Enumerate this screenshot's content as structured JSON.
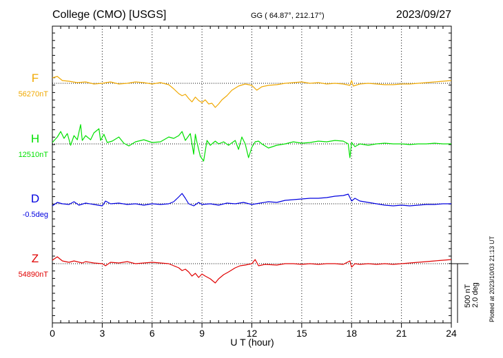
{
  "header": {
    "station": "College (CMO)  [USGS]",
    "coords": "GG ( 64.87°, 212.17°)",
    "date": "2023/09/27"
  },
  "side_note": "Plotted at 2023/10/03 21:13 UT",
  "scale_bar": {
    "line1": "500 nT",
    "line2": "2.0 deg"
  },
  "chart_data": {
    "type": "line",
    "xlabel": "U T (hour)",
    "xlim": [
      0,
      24
    ],
    "xticks": [
      0,
      3,
      6,
      9,
      12,
      15,
      18,
      21,
      24
    ],
    "grid": "vertical dotted every 3 h",
    "series": [
      {
        "name": "F",
        "baseline_label": "56270nT",
        "color": "#f0a800",
        "scale": "500 nT per bar",
        "points": [
          [
            0,
            -8
          ],
          [
            0.3,
            -10
          ],
          [
            0.6,
            -4
          ],
          [
            1,
            -3
          ],
          [
            1.5,
            -1
          ],
          [
            2,
            -2
          ],
          [
            2.5,
            1
          ],
          [
            3,
            0
          ],
          [
            3.5,
            -2
          ],
          [
            4,
            1
          ],
          [
            4.5,
            0
          ],
          [
            5,
            -2
          ],
          [
            5.5,
            -1
          ],
          [
            6,
            1
          ],
          [
            6.5,
            -1
          ],
          [
            7,
            2
          ],
          [
            7.3,
            8
          ],
          [
            7.6,
            15
          ],
          [
            7.8,
            18
          ],
          [
            8,
            16
          ],
          [
            8.2,
            22
          ],
          [
            8.4,
            27
          ],
          [
            8.6,
            20
          ],
          [
            8.8,
            25
          ],
          [
            9,
            28
          ],
          [
            9.2,
            24
          ],
          [
            9.4,
            30
          ],
          [
            9.6,
            29
          ],
          [
            9.8,
            35
          ],
          [
            10,
            30
          ],
          [
            10.2,
            24
          ],
          [
            10.5,
            18
          ],
          [
            10.8,
            10
          ],
          [
            11.2,
            4
          ],
          [
            11.6,
            1
          ],
          [
            12,
            3
          ],
          [
            12.3,
            10
          ],
          [
            12.6,
            5
          ],
          [
            13,
            3
          ],
          [
            13.5,
            2
          ],
          [
            14,
            0
          ],
          [
            14.5,
            -1
          ],
          [
            15,
            -2
          ],
          [
            15.5,
            0
          ],
          [
            16,
            -1
          ],
          [
            16.5,
            1
          ],
          [
            17,
            0
          ],
          [
            17.5,
            1
          ],
          [
            17.9,
            3
          ],
          [
            18,
            -4
          ],
          [
            18.1,
            4
          ],
          [
            18.5,
            1
          ],
          [
            19,
            0
          ],
          [
            19.5,
            1
          ],
          [
            20,
            2
          ],
          [
            20.5,
            2
          ],
          [
            21,
            1
          ],
          [
            21.5,
            1
          ],
          [
            22,
            0
          ],
          [
            22.5,
            -1
          ],
          [
            23,
            -2
          ],
          [
            23.5,
            -3
          ],
          [
            24,
            -4
          ]
        ]
      },
      {
        "name": "H",
        "baseline_label": "12510nT",
        "color": "#00e000",
        "scale": "500 nT per bar",
        "points": [
          [
            0,
            -2
          ],
          [
            0.3,
            -10
          ],
          [
            0.5,
            -18
          ],
          [
            0.7,
            -8
          ],
          [
            0.9,
            -15
          ],
          [
            1.1,
            2
          ],
          [
            1.3,
            -12
          ],
          [
            1.5,
            -6
          ],
          [
            1.7,
            -28
          ],
          [
            1.8,
            -5
          ],
          [
            2,
            -12
          ],
          [
            2.3,
            -6
          ],
          [
            2.5,
            -16
          ],
          [
            2.8,
            -22
          ],
          [
            2.9,
            -5
          ],
          [
            3.1,
            -14
          ],
          [
            3.3,
            -2
          ],
          [
            3.6,
            -4
          ],
          [
            4,
            -10
          ],
          [
            4.3,
            -1
          ],
          [
            4.6,
            3
          ],
          [
            5,
            -3
          ],
          [
            5.5,
            -6
          ],
          [
            6,
            -2
          ],
          [
            6.5,
            -3
          ],
          [
            7,
            -10
          ],
          [
            7.3,
            -8
          ],
          [
            7.6,
            -12
          ],
          [
            7.8,
            -18
          ],
          [
            8,
            -5
          ],
          [
            8.3,
            -15
          ],
          [
            8.5,
            15
          ],
          [
            8.6,
            -14
          ],
          [
            8.7,
            -2
          ],
          [
            8.9,
            18
          ],
          [
            9.1,
            25
          ],
          [
            9.3,
            -5
          ],
          [
            9.5,
            2
          ],
          [
            9.8,
            -4
          ],
          [
            10,
            0
          ],
          [
            10.3,
            -3
          ],
          [
            10.6,
            2
          ],
          [
            11,
            -5
          ],
          [
            11.2,
            8
          ],
          [
            11.4,
            -10
          ],
          [
            11.6,
            0
          ],
          [
            11.8,
            20
          ],
          [
            12,
            5
          ],
          [
            12.2,
            -3
          ],
          [
            12.4,
            -4
          ],
          [
            12.6,
            0
          ],
          [
            13,
            6
          ],
          [
            13.5,
            2
          ],
          [
            14,
            0
          ],
          [
            14.5,
            -3
          ],
          [
            15,
            -1
          ],
          [
            15.5,
            -2
          ],
          [
            16,
            -4
          ],
          [
            16.5,
            -3
          ],
          [
            17,
            -5
          ],
          [
            17.5,
            -4
          ],
          [
            17.8,
            0
          ],
          [
            17.9,
            20
          ],
          [
            18,
            -2
          ],
          [
            18.2,
            4
          ],
          [
            18.5,
            0
          ],
          [
            19,
            2
          ],
          [
            19.5,
            0
          ],
          [
            20,
            -1
          ],
          [
            20.5,
            0
          ],
          [
            21,
            0
          ],
          [
            21.5,
            1
          ],
          [
            22,
            0
          ],
          [
            22.5,
            0
          ],
          [
            23,
            -1
          ],
          [
            23.5,
            0
          ],
          [
            24,
            0
          ]
        ]
      },
      {
        "name": "D",
        "baseline_label": "-0.5deg",
        "color": "#0000e0",
        "scale": "2.0 deg per bar",
        "points": [
          [
            0,
            3
          ],
          [
            0.3,
            -2
          ],
          [
            0.6,
            0
          ],
          [
            1,
            1
          ],
          [
            1.3,
            -3
          ],
          [
            1.6,
            2
          ],
          [
            2,
            -1
          ],
          [
            2.5,
            1
          ],
          [
            3,
            3
          ],
          [
            3.2,
            -4
          ],
          [
            3.5,
            0
          ],
          [
            4,
            -1
          ],
          [
            4.5,
            1
          ],
          [
            5,
            0
          ],
          [
            5.5,
            2
          ],
          [
            6,
            0
          ],
          [
            6.5,
            1
          ],
          [
            7,
            0
          ],
          [
            7.3,
            -3
          ],
          [
            7.6,
            -10
          ],
          [
            7.8,
            -15
          ],
          [
            8,
            -8
          ],
          [
            8.2,
            0
          ],
          [
            8.5,
            3
          ],
          [
            8.8,
            -2
          ],
          [
            9,
            1
          ],
          [
            9.5,
            0
          ],
          [
            10,
            2
          ],
          [
            10.5,
            -1
          ],
          [
            11,
            0
          ],
          [
            11.5,
            -2
          ],
          [
            12,
            1
          ],
          [
            12.5,
            -1
          ],
          [
            13,
            -3
          ],
          [
            13.5,
            -2
          ],
          [
            14,
            -5
          ],
          [
            14.5,
            -6
          ],
          [
            15,
            -7
          ],
          [
            15.5,
            -8
          ],
          [
            16,
            -8
          ],
          [
            16.5,
            -9
          ],
          [
            17,
            -11
          ],
          [
            17.5,
            -12
          ],
          [
            17.8,
            -14
          ],
          [
            18,
            -4
          ],
          [
            18.2,
            -8
          ],
          [
            18.5,
            -4
          ],
          [
            19,
            -2
          ],
          [
            19.5,
            0
          ],
          [
            20,
            2
          ],
          [
            20.5,
            3
          ],
          [
            21,
            2
          ],
          [
            21.5,
            3
          ],
          [
            22,
            2
          ],
          [
            22.5,
            1
          ],
          [
            23,
            1
          ],
          [
            23.5,
            0
          ],
          [
            24,
            0
          ]
        ]
      },
      {
        "name": "Z",
        "baseline_label": "54890nT",
        "color": "#e00000",
        "scale": "500 nT per bar",
        "points": [
          [
            0,
            -5
          ],
          [
            0.3,
            -10
          ],
          [
            0.6,
            -4
          ],
          [
            1,
            -2
          ],
          [
            1.3,
            -4
          ],
          [
            1.8,
            -1
          ],
          [
            2,
            -3
          ],
          [
            2.5,
            -1
          ],
          [
            3,
            0
          ],
          [
            3.2,
            3
          ],
          [
            3.5,
            -2
          ],
          [
            4,
            -1
          ],
          [
            4.5,
            -3
          ],
          [
            5,
            0
          ],
          [
            5.5,
            -1
          ],
          [
            6,
            -2
          ],
          [
            6.5,
            -1
          ],
          [
            7,
            0
          ],
          [
            7.3,
            3
          ],
          [
            7.6,
            6
          ],
          [
            7.8,
            10
          ],
          [
            8,
            8
          ],
          [
            8.2,
            12
          ],
          [
            8.4,
            18
          ],
          [
            8.6,
            14
          ],
          [
            8.8,
            20
          ],
          [
            9,
            15
          ],
          [
            9.2,
            18
          ],
          [
            9.5,
            22
          ],
          [
            9.8,
            28
          ],
          [
            10,
            22
          ],
          [
            10.3,
            16
          ],
          [
            10.6,
            12
          ],
          [
            11,
            6
          ],
          [
            11.3,
            3
          ],
          [
            11.6,
            2
          ],
          [
            12,
            0
          ],
          [
            12.2,
            -6
          ],
          [
            12.4,
            3
          ],
          [
            12.8,
            1
          ],
          [
            13.5,
            2
          ],
          [
            14,
            0
          ],
          [
            14.5,
            0
          ],
          [
            15,
            1
          ],
          [
            15.5,
            0
          ],
          [
            16,
            1
          ],
          [
            16.5,
            0
          ],
          [
            17,
            0
          ],
          [
            17.5,
            1
          ],
          [
            17.9,
            -4
          ],
          [
            18,
            5
          ],
          [
            18.2,
            0
          ],
          [
            18.5,
            1
          ],
          [
            19,
            0
          ],
          [
            19.5,
            1
          ],
          [
            20,
            0
          ],
          [
            20.5,
            1
          ],
          [
            21,
            0
          ],
          [
            21.5,
            -1
          ],
          [
            22,
            -2
          ],
          [
            22.5,
            -3
          ],
          [
            23,
            -4
          ],
          [
            23.5,
            -5
          ],
          [
            24,
            -6
          ]
        ]
      }
    ]
  }
}
